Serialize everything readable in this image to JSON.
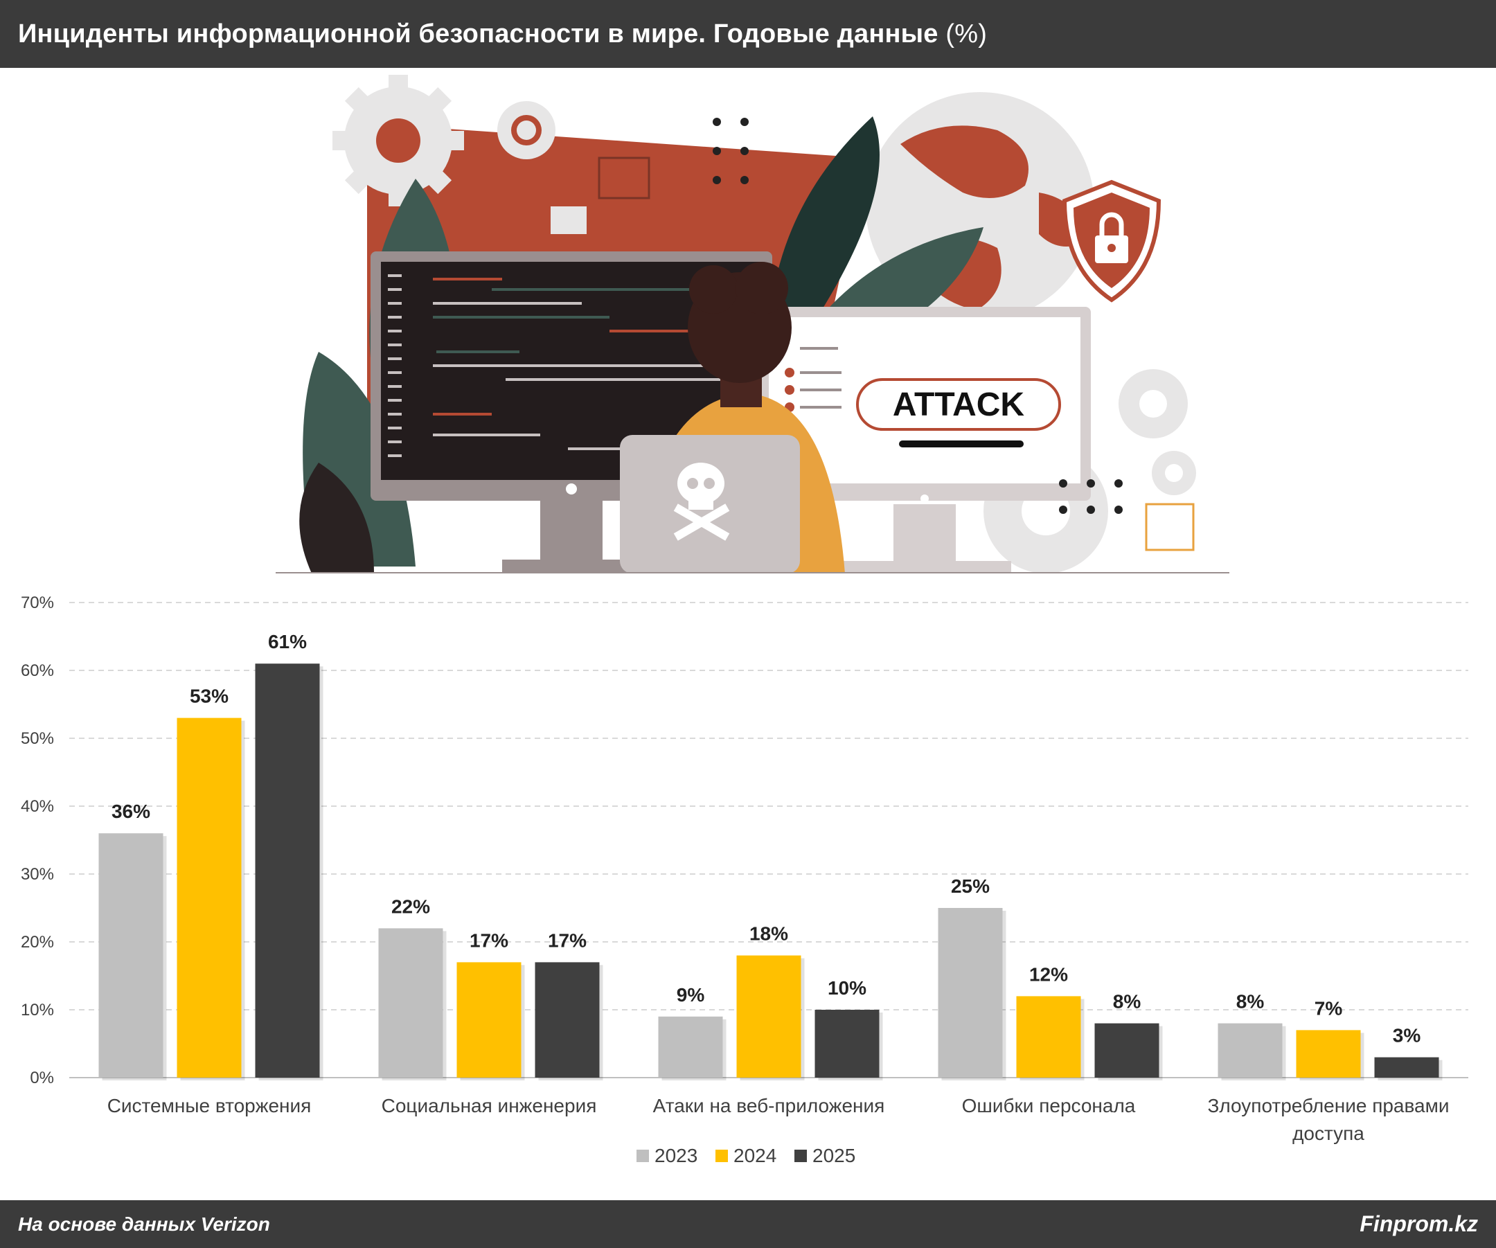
{
  "header": {
    "title": "Инциденты информационной безопасности в мире. Годовые данные",
    "unit": "(%)"
  },
  "illustration": {
    "screen_text": "ATTACK",
    "icons": [
      "gear-icon",
      "globe-icon",
      "shield-lock-icon",
      "skull-crossbones-icon",
      "leaf-icon",
      "monitor-icon",
      "hacker-figure"
    ]
  },
  "chart_data": {
    "type": "bar",
    "categories": [
      [
        "Системные вторжения"
      ],
      [
        "Социальная инженерия"
      ],
      [
        "Атаки на веб-приложения"
      ],
      [
        "Ошибки персонала"
      ],
      [
        "Злоупотребление правами",
        "доступа"
      ]
    ],
    "series": [
      {
        "name": "2023",
        "color": "#bfbfbf",
        "values": [
          36,
          22,
          9,
          25,
          8
        ]
      },
      {
        "name": "2024",
        "color": "#ffc000",
        "values": [
          53,
          17,
          18,
          12,
          7
        ]
      },
      {
        "name": "2025",
        "color": "#404040",
        "values": [
          61,
          17,
          10,
          8,
          3
        ]
      }
    ],
    "ylim": [
      0,
      70
    ],
    "yticks": [
      "0%",
      "10%",
      "20%",
      "30%",
      "40%",
      "50%",
      "60%",
      "70%"
    ],
    "value_suffix": "%",
    "grid": "dashed-horizontal",
    "legend": "bottom-center"
  },
  "footer": {
    "source": "На основе данных Verizon",
    "brand": "Finprom.kz"
  },
  "colors": {
    "header_bg": "#3b3b3b",
    "illustration_red": "#b54a33",
    "illustration_green": "#3f5a52",
    "illustration_orange": "#e8a23f"
  }
}
